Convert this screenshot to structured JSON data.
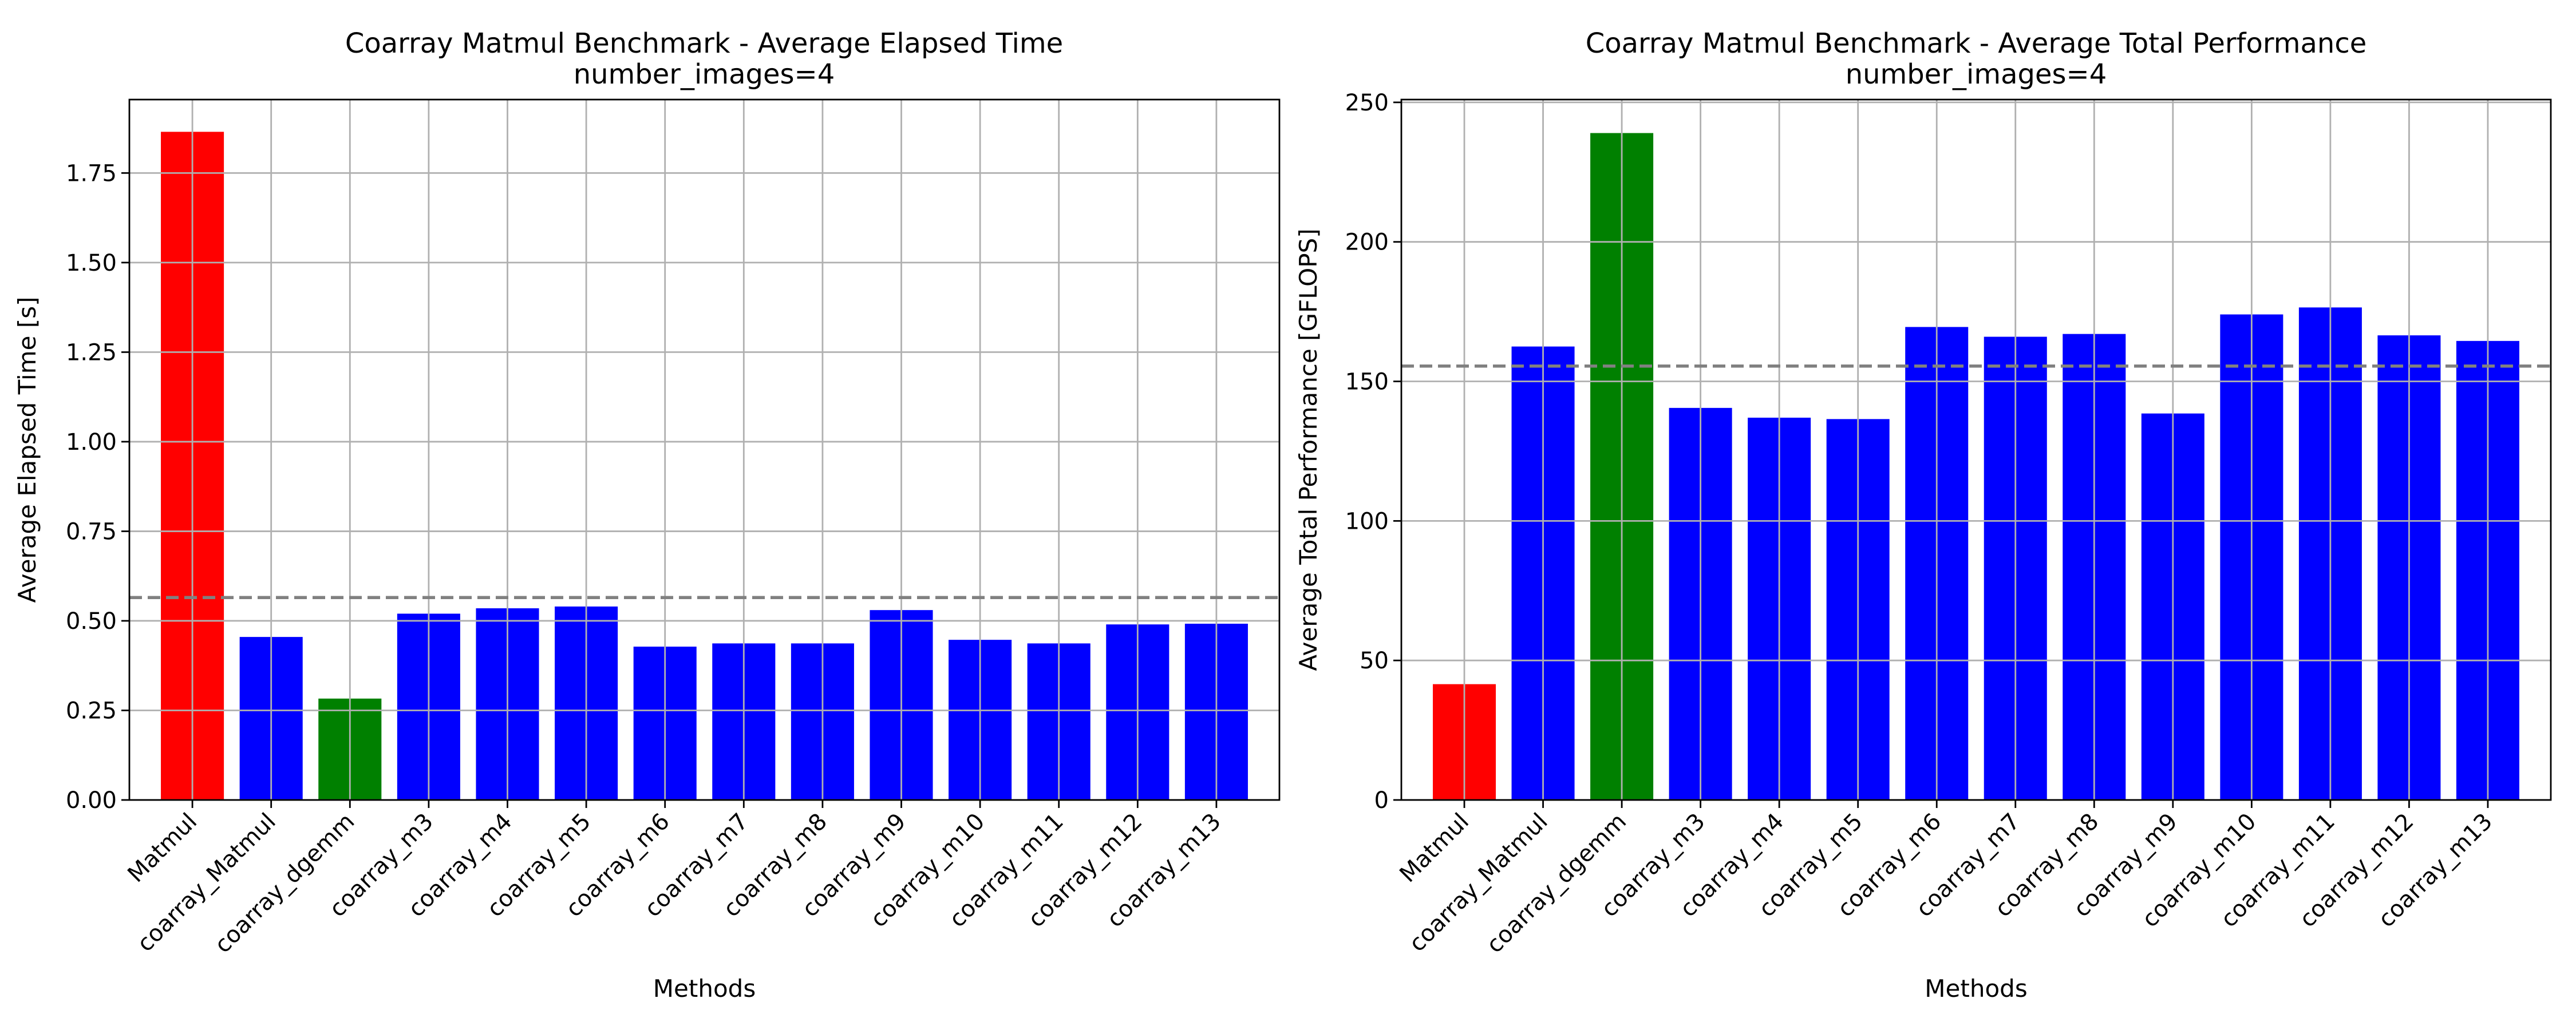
{
  "chart_data": [
    {
      "type": "bar",
      "title": "Coarray Matmul Benchmark - Average Elapsed Time",
      "subtitle": "number_images=4",
      "xlabel": "Methods",
      "ylabel": "Average Elapsed Time [s]",
      "ylim": [
        0,
        1.955
      ],
      "yticks": [
        0.0,
        0.25,
        0.5,
        0.75,
        1.0,
        1.25,
        1.5,
        1.75
      ],
      "ytick_labels": [
        "0.00",
        "0.25",
        "0.50",
        "0.75",
        "1.00",
        "1.25",
        "1.50",
        "1.75"
      ],
      "grid": true,
      "categories": [
        "Matmul",
        "coarray_Matmul",
        "coarray_dgemm",
        "coarray_m3",
        "coarray_m4",
        "coarray_m5",
        "coarray_m6",
        "coarray_m7",
        "coarray_m8",
        "coarray_m9",
        "coarray_m10",
        "coarray_m11",
        "coarray_m12",
        "coarray_m13"
      ],
      "values": [
        1.865,
        0.455,
        0.283,
        0.52,
        0.535,
        0.54,
        0.428,
        0.437,
        0.437,
        0.53,
        0.447,
        0.437,
        0.49,
        0.492
      ],
      "bar_colors": [
        "#ff0000",
        "#0000ff",
        "#008000",
        "#0000ff",
        "#0000ff",
        "#0000ff",
        "#0000ff",
        "#0000ff",
        "#0000ff",
        "#0000ff",
        "#0000ff",
        "#0000ff",
        "#0000ff",
        "#0000ff"
      ],
      "reference_line": {
        "value": 0.565,
        "style": "dashed",
        "color": "#808080"
      }
    },
    {
      "type": "bar",
      "title": "Coarray Matmul Benchmark - Average Total Performance",
      "subtitle": "number_images=4",
      "xlabel": "Methods",
      "ylabel": "Average Total Performance [GFLOPS]",
      "ylim": [
        0,
        251
      ],
      "yticks": [
        0,
        50,
        100,
        150,
        200,
        250
      ],
      "ytick_labels": [
        "0",
        "50",
        "100",
        "150",
        "200",
        "250"
      ],
      "grid": true,
      "categories": [
        "Matmul",
        "coarray_Matmul",
        "coarray_dgemm",
        "coarray_m3",
        "coarray_m4",
        "coarray_m5",
        "coarray_m6",
        "coarray_m7",
        "coarray_m8",
        "coarray_m9",
        "coarray_m10",
        "coarray_m11",
        "coarray_m12",
        "coarray_m13"
      ],
      "values": [
        41.5,
        162.5,
        239,
        140.5,
        137,
        136.5,
        169.5,
        166,
        167,
        138.5,
        174,
        176.5,
        166.5,
        164.5
      ],
      "bar_colors": [
        "#ff0000",
        "#0000ff",
        "#008000",
        "#0000ff",
        "#0000ff",
        "#0000ff",
        "#0000ff",
        "#0000ff",
        "#0000ff",
        "#0000ff",
        "#0000ff",
        "#0000ff",
        "#0000ff",
        "#0000ff"
      ],
      "reference_line": {
        "value": 155.5,
        "style": "dashed",
        "color": "#808080"
      }
    }
  ]
}
